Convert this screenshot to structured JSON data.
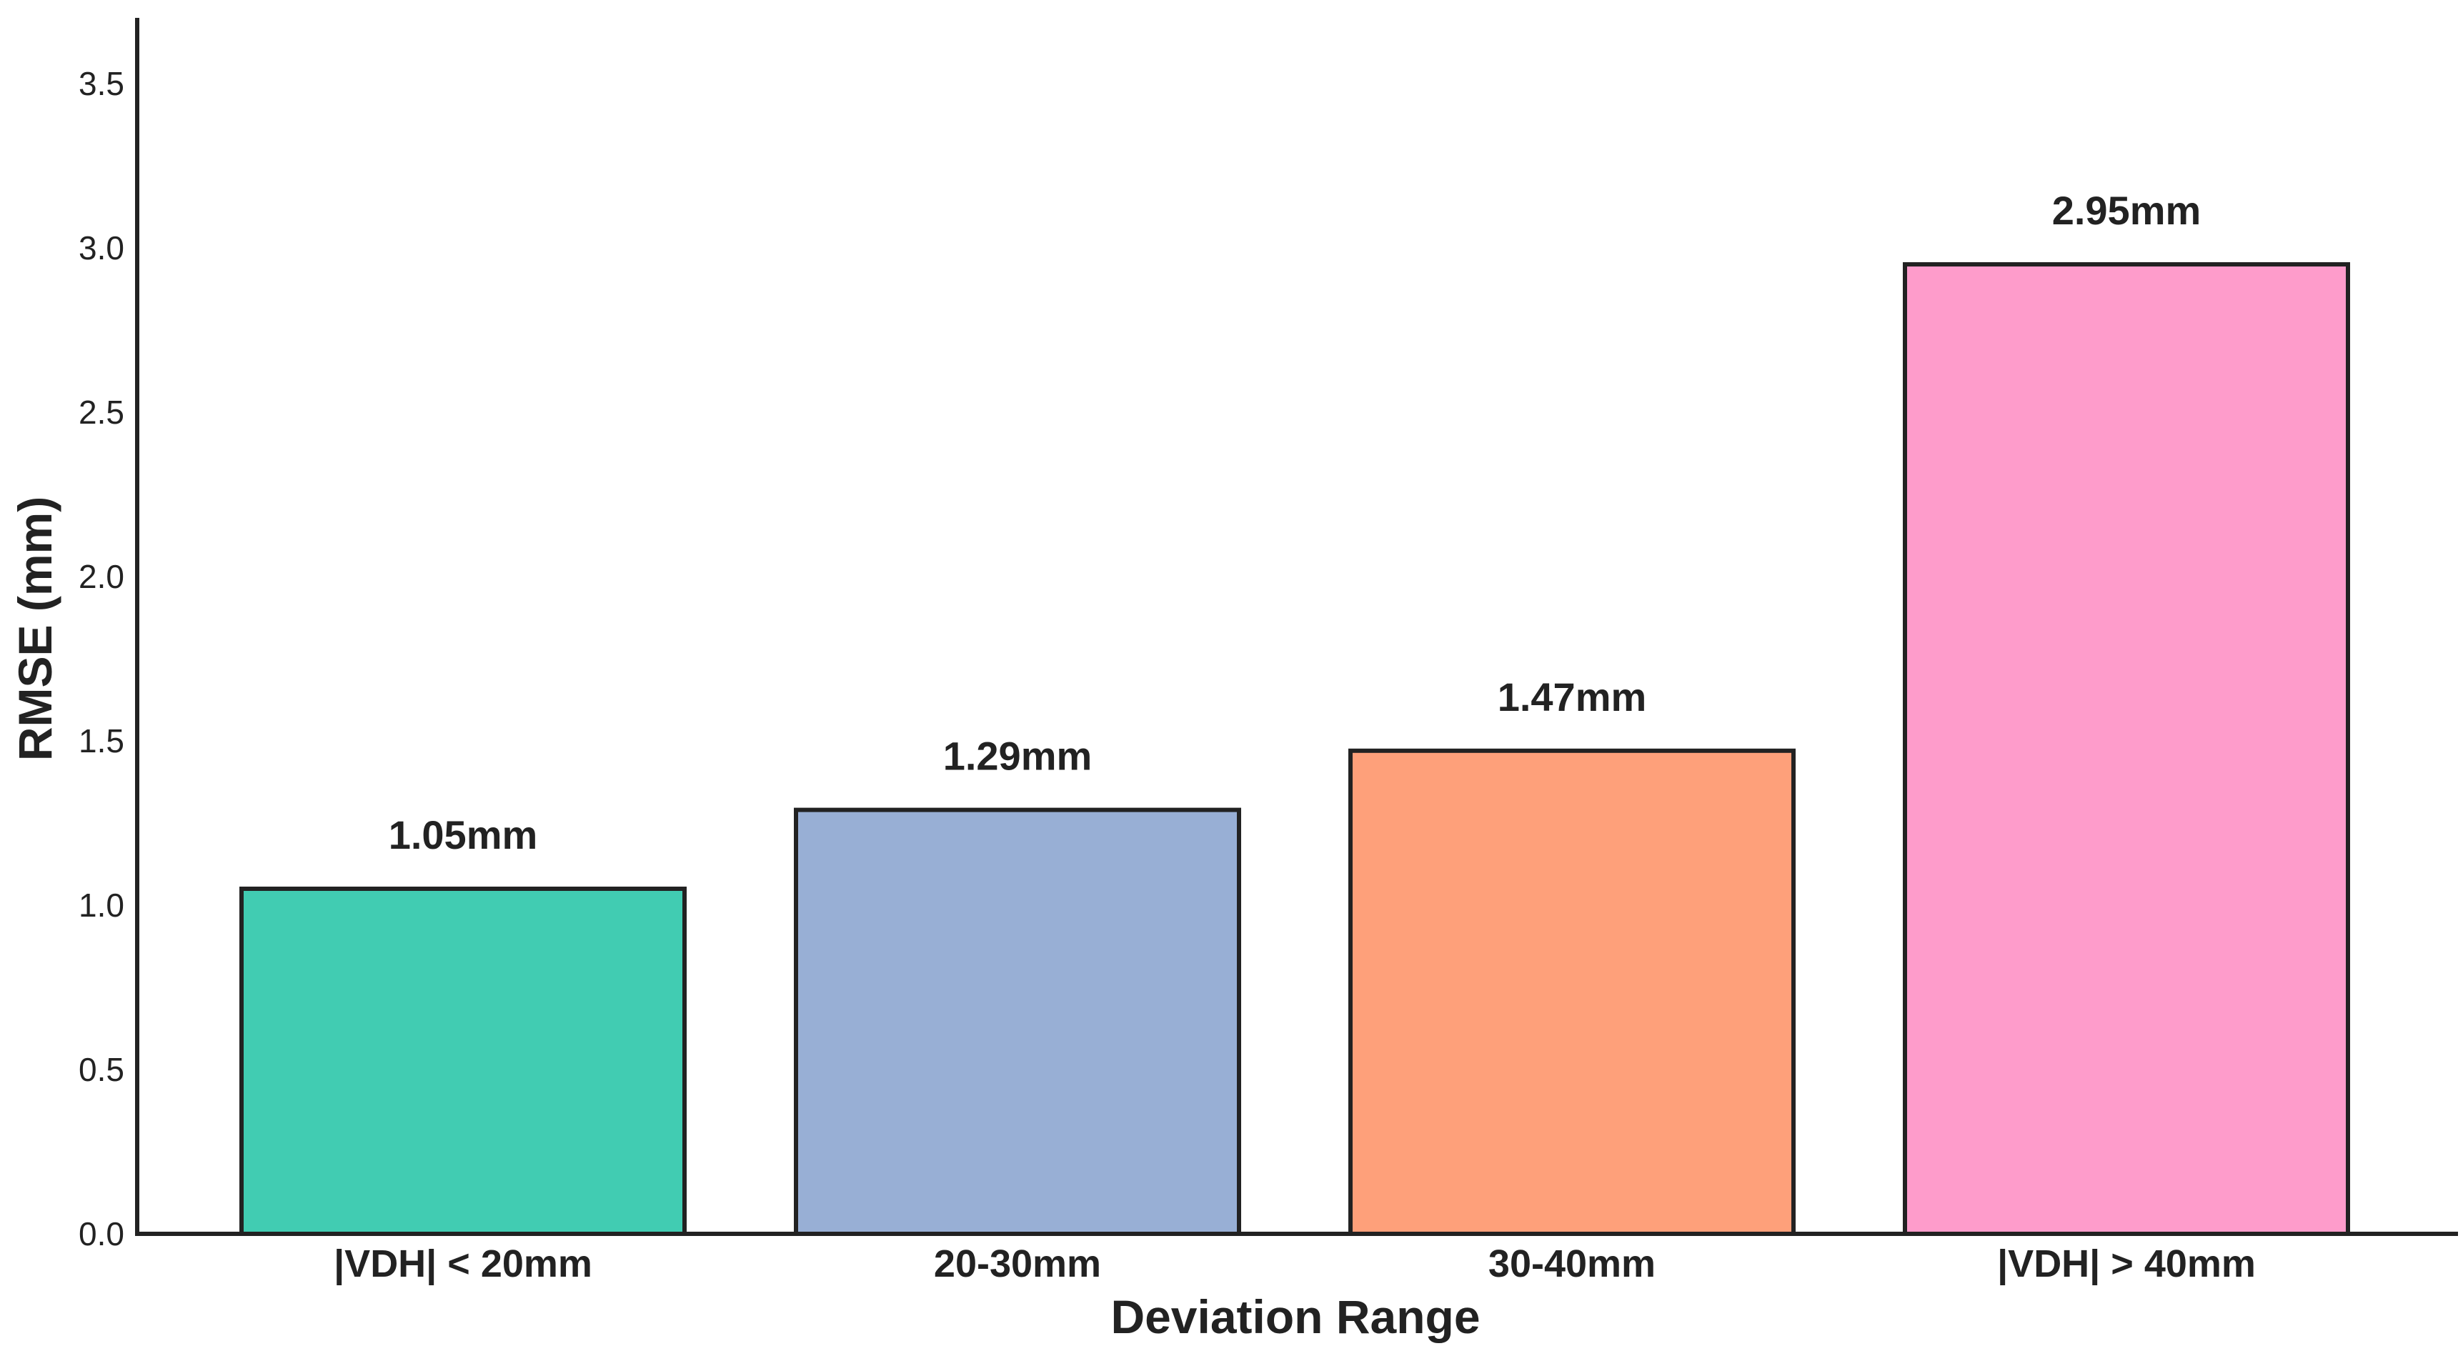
{
  "chart_data": {
    "type": "bar",
    "title": "",
    "xlabel": "Deviation Range",
    "ylabel": "RMSE (mm)",
    "categories": [
      "|VDH| < 20mm",
      "20-30mm",
      "30-40mm",
      "|VDH| > 40mm"
    ],
    "values": [
      1.05,
      1.29,
      1.47,
      2.95
    ],
    "data_labels": [
      "1.05mm",
      "1.29mm",
      "1.47mm",
      "2.95mm"
    ],
    "colors": [
      "#41ccb2",
      "#98afd5",
      "#fea07a",
      "#fe9ccb"
    ],
    "ylim": [
      0,
      3.7
    ],
    "yticks": [
      0.0,
      0.5,
      1.0,
      1.5,
      2.0,
      2.5,
      3.0,
      3.5
    ],
    "ytick_labels": [
      "0.0",
      "0.5",
      "1.0",
      "1.5",
      "2.0",
      "2.5",
      "3.0",
      "3.5"
    ],
    "grid": false,
    "legend": "none",
    "edge_color": "#222222",
    "axis_color": "#222222"
  }
}
